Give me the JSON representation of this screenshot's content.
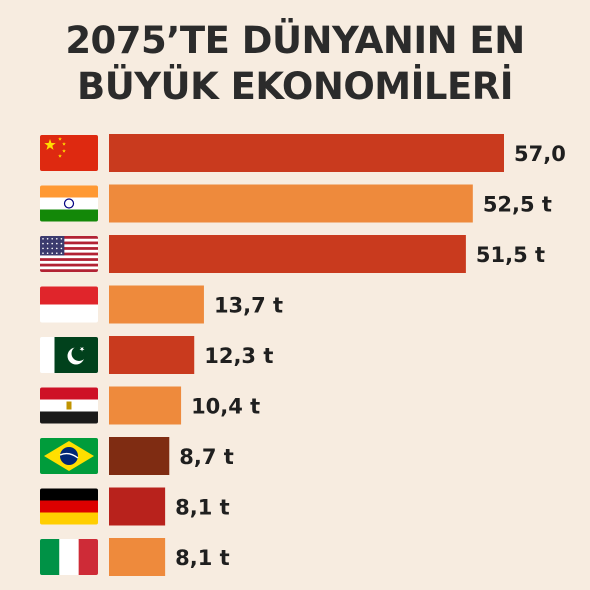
{
  "title_line1": "2075’TE DÜNYANIN EN",
  "title_line2": "BÜYÜK EKONOMİLERİ",
  "chart_data": {
    "type": "bar",
    "orientation": "horizontal",
    "categories": [
      "China",
      "India",
      "United States",
      "Indonesia",
      "Pakistan",
      "Egypt",
      "Brazil",
      "Germany",
      "Italy"
    ],
    "flags": [
      "flag-china",
      "flag-india",
      "flag-usa",
      "flag-indonesia",
      "flag-pakistan",
      "flag-egypt",
      "flag-brazil",
      "flag-germany",
      "flag-italy"
    ],
    "values": [
      57.0,
      52.5,
      51.5,
      13.7,
      12.3,
      10.4,
      8.7,
      8.1,
      8.1
    ],
    "value_labels": [
      "57,0",
      "52,5 t",
      "51,5 t",
      "13,7 t",
      "12,3 t",
      "10,4 t",
      "8,7 t",
      "8,1 t",
      "8,1 t"
    ],
    "bar_colors": [
      "#c93a1e",
      "#ee8a3c",
      "#c93a1e",
      "#ee8a3c",
      "#c93a1e",
      "#ee8a3c",
      "#7f2c12",
      "#b8221c",
      "#ee8a3c"
    ],
    "grid": false,
    "legend": "none"
  }
}
